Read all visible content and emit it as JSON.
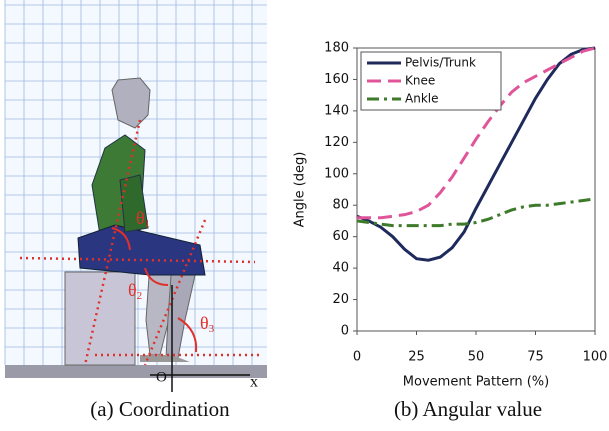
{
  "figure": {
    "captions": [
      "(a) Coordination",
      "(b) Angular value"
    ],
    "diagram": {
      "angles": [
        {
          "symbol": "θ",
          "index": "1"
        },
        {
          "symbol": "θ",
          "index": "2"
        },
        {
          "symbol": "θ",
          "index": "3"
        }
      ],
      "origin": "O",
      "axis": "x"
    }
  },
  "chart_data": {
    "type": "line",
    "x_label": "Movement Pattern (%)",
    "y_label": "Angle (deg)",
    "x": [
      0,
      5,
      10,
      15,
      20,
      25,
      30,
      35,
      40,
      45,
      50,
      55,
      60,
      65,
      70,
      75,
      80,
      85,
      90,
      95,
      100
    ],
    "series": [
      {
        "name": "Pelvis/Trunk",
        "color": "#1f2a5c",
        "linestyle": "solid",
        "values": [
          73,
          70,
          66,
          60,
          52,
          46,
          45,
          47,
          53,
          63,
          78,
          92,
          106,
          120,
          134,
          148,
          160,
          170,
          176,
          179,
          180
        ]
      },
      {
        "name": "Knee",
        "color": "#e0559a",
        "linestyle": "dashed",
        "values": [
          72,
          72,
          72,
          73,
          74,
          76,
          80,
          88,
          98,
          110,
          122,
          133,
          143,
          152,
          158,
          162,
          166,
          170,
          174,
          178,
          180
        ]
      },
      {
        "name": "Ankle",
        "color": "#3d7a2a",
        "linestyle": "dashdot",
        "values": [
          70,
          69,
          68,
          67,
          67,
          67,
          67,
          67,
          68,
          68,
          69,
          71,
          74,
          77,
          79,
          80,
          80,
          81,
          82,
          83,
          84
        ]
      }
    ],
    "xlim": [
      0,
      100
    ],
    "xticks": [
      0,
      25,
      50,
      75,
      100
    ],
    "ylim": [
      0,
      180
    ],
    "yticks": [
      0,
      20,
      40,
      60,
      80,
      100,
      120,
      140,
      160,
      180
    ],
    "grid": false,
    "legend": "upper left"
  }
}
